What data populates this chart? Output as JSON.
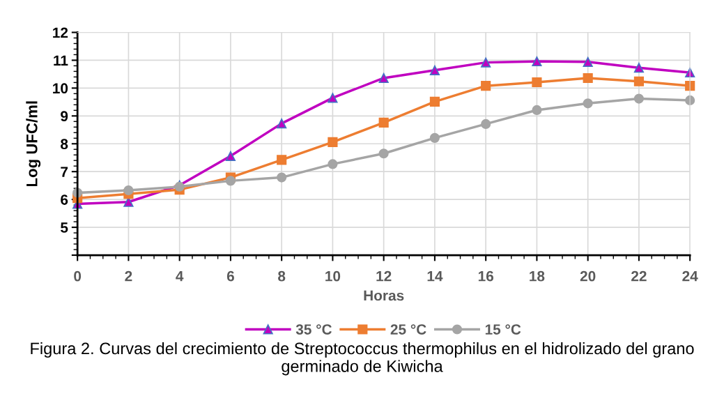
{
  "chart_data": {
    "type": "line",
    "xlabel": "Horas",
    "ylabel": "Log UFC/ml",
    "x": [
      0,
      2,
      4,
      6,
      8,
      10,
      12,
      14,
      16,
      18,
      20,
      22,
      24
    ],
    "series": [
      {
        "name": "35 °C",
        "color": "#c000c0",
        "marker": "triangle",
        "values": [
          5.84,
          5.91,
          6.51,
          7.56,
          8.73,
          9.65,
          10.36,
          10.64,
          10.92,
          10.96,
          10.94,
          10.73,
          10.56
        ]
      },
      {
        "name": "25 °C",
        "color": "#ed7d31",
        "marker": "square",
        "values": [
          6.05,
          6.2,
          6.35,
          6.79,
          7.42,
          8.06,
          8.76,
          9.51,
          10.08,
          10.21,
          10.36,
          10.24,
          10.08
        ]
      },
      {
        "name": "15 °C",
        "color": "#a5a5a5",
        "marker": "circle",
        "values": [
          6.24,
          6.33,
          6.46,
          6.67,
          6.79,
          7.27,
          7.65,
          8.21,
          8.71,
          9.21,
          9.45,
          9.62,
          9.56
        ]
      }
    ],
    "xlim": [
      0,
      24
    ],
    "xticks": [
      0,
      2,
      4,
      6,
      8,
      10,
      12,
      14,
      16,
      18,
      20,
      22,
      24
    ],
    "ylim": [
      4,
      12
    ],
    "yticks": [
      {
        "value": 4,
        "label": null
      },
      5,
      6,
      7,
      8,
      9,
      10,
      11,
      12
    ],
    "grid": true,
    "legend": "bottom",
    "line_style": "solid",
    "annotations": [
      "Figura 2. Curvas del crecimiento de Streptococcus thermophilus en el hidrolizado del grano germinado de Kiwicha"
    ]
  }
}
